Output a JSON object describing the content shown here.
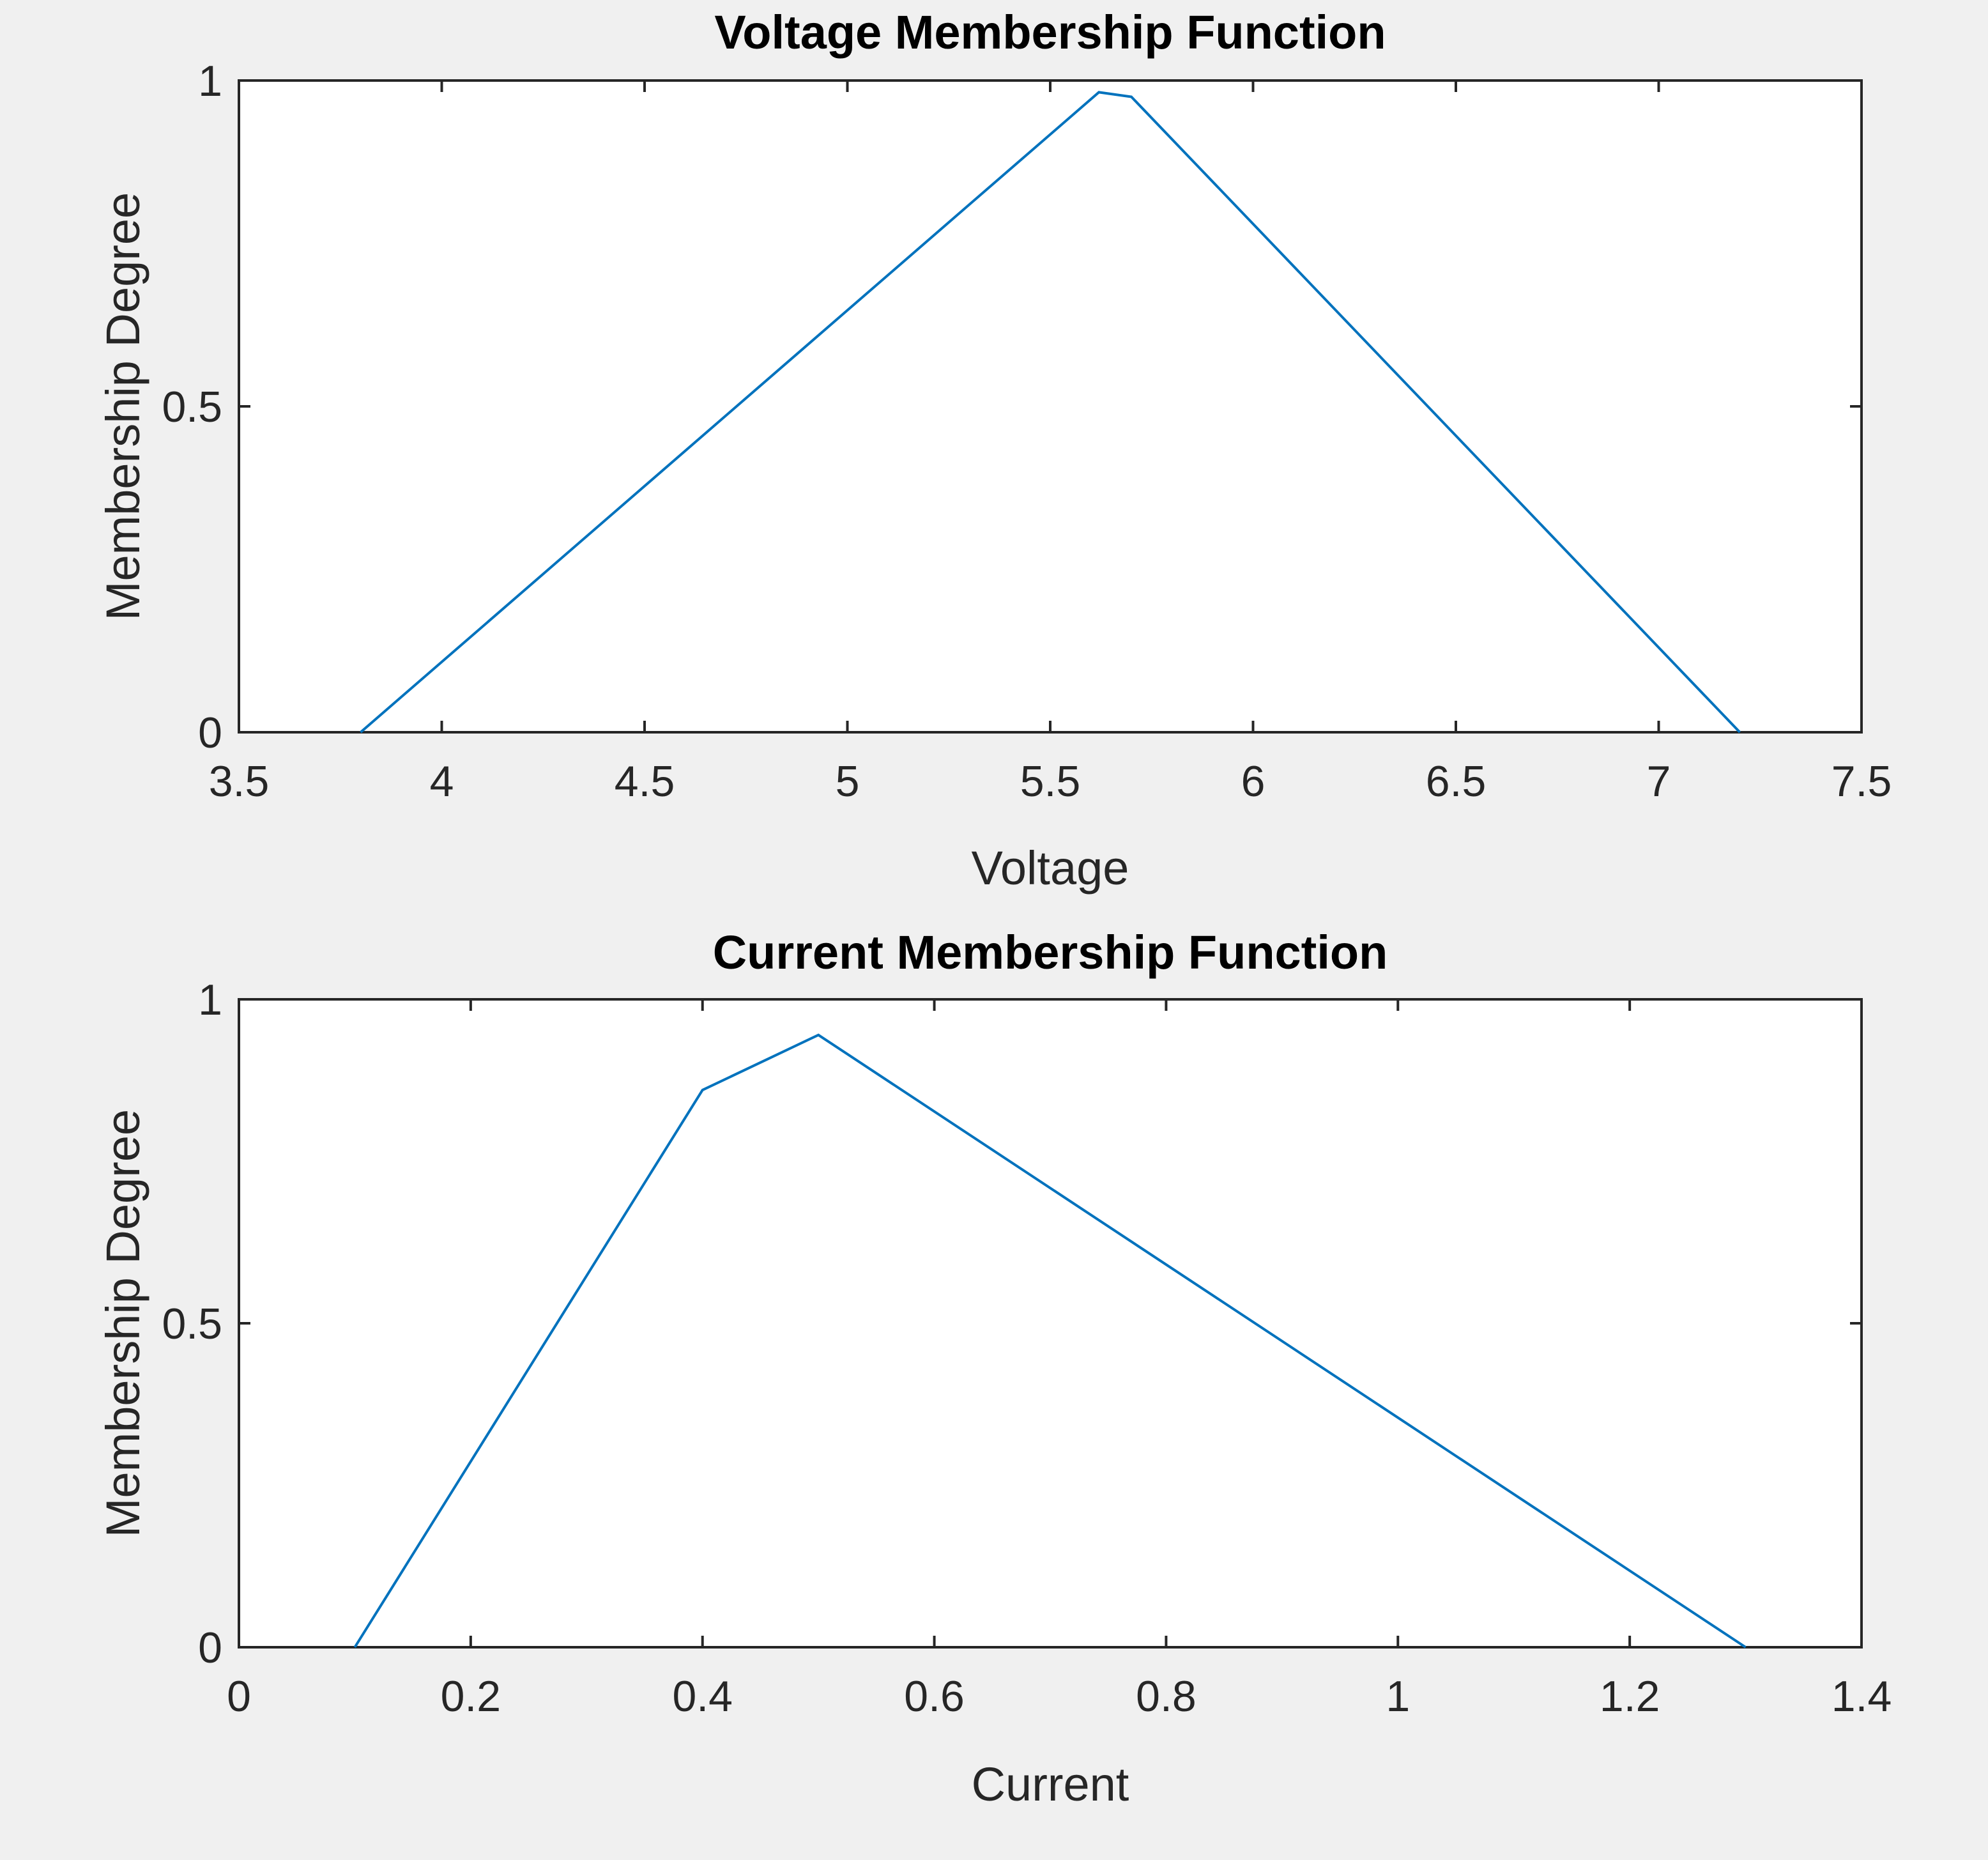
{
  "figure": {
    "background_color": "#f0f0f0",
    "axes_color": "#ffffff",
    "line_color": "#0072bd"
  },
  "chart_data": [
    {
      "type": "line",
      "title": "Voltage Membership Function",
      "xlabel": "Voltage",
      "ylabel": "Membership Degree",
      "xlim": [
        3.5,
        7.5
      ],
      "ylim": [
        0,
        1
      ],
      "xticks": [
        3.5,
        4,
        4.5,
        5,
        5.5,
        6,
        6.5,
        7,
        7.5
      ],
      "xtick_labels": [
        "3.5",
        "4",
        "4.5",
        "5",
        "5.5",
        "6",
        "6.5",
        "7",
        "7.5"
      ],
      "yticks": [
        0,
        0.5,
        1
      ],
      "ytick_labels": [
        "0",
        "0.5",
        "1"
      ],
      "grid": false,
      "series": [
        {
          "x": [
            3.8,
            5.62,
            5.7,
            7.2
          ],
          "y": [
            0,
            0.982,
            0.975,
            0
          ]
        }
      ]
    },
    {
      "type": "line",
      "title": "Current Membership Function",
      "xlabel": "Current",
      "ylabel": "Membership Degree",
      "xlim": [
        0,
        1.4
      ],
      "ylim": [
        0,
        1
      ],
      "xticks": [
        0,
        0.2,
        0.4,
        0.6,
        0.8,
        1,
        1.2,
        1.4
      ],
      "xtick_labels": [
        "0",
        "0.2",
        "0.4",
        "0.6",
        "0.8",
        "1",
        "1.2",
        "1.4"
      ],
      "yticks": [
        0,
        0.5,
        1
      ],
      "ytick_labels": [
        "0",
        "0.5",
        "1"
      ],
      "grid": false,
      "series": [
        {
          "x": [
            0.1,
            0.4,
            0.5,
            1.3
          ],
          "y": [
            0,
            0.86,
            0.945,
            0
          ]
        }
      ]
    }
  ]
}
